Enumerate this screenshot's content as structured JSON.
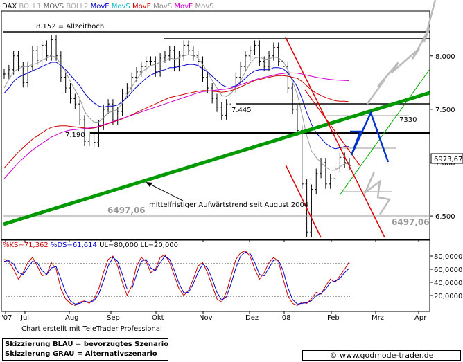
{
  "chart_data": [
    {
      "type": "line",
      "title": "",
      "indicator_legend": [
        {
          "text": "DAX",
          "color": "#000000"
        },
        {
          "text": "BOLL1",
          "color": "#aaaaaa"
        },
        {
          "text": "MOVS",
          "color": "#666666"
        },
        {
          "text": "BOLL2",
          "color": "#aaaaaa"
        },
        {
          "text": "MovE",
          "color": "#0000cc"
        },
        {
          "text": "MovS",
          "color": "#00bbcc"
        },
        {
          "text": "MovE",
          "color": "#cc0000"
        },
        {
          "text": "MovS",
          "color": "#888888"
        },
        {
          "text": "MovE",
          "color": "#cc00cc"
        },
        {
          "text": "MovS",
          "color": "#888888"
        }
      ],
      "x_tick_labels": [
        "'07",
        "Jul",
        "Aug",
        "Sep",
        "Okt",
        "Nov",
        "Dez",
        "'08",
        "Feb",
        "Mrz",
        "Apr"
      ],
      "y_tick_labels": [
        8000,
        7500,
        7000,
        6500
      ],
      "ylim": [
        6280,
        8420
      ],
      "grid": false,
      "current_value_label": "6973,67",
      "series": [
        {
          "role": "price",
          "color": "#000000",
          "values": [
            7830,
            7870,
            8000,
            7900,
            7750,
            7900,
            8050,
            7960,
            8100,
            8000,
            8152,
            8000,
            7800,
            7700,
            7600,
            7550,
            7400,
            7200,
            7250,
            7190,
            7350,
            7500,
            7550,
            7400,
            7480,
            7650,
            7700,
            7800,
            7850,
            7900,
            7950,
            7950,
            7850,
            7980,
            8000,
            8050,
            7900,
            8000,
            8100,
            8050,
            8000,
            7950,
            7800,
            7700,
            7600,
            7520,
            7445,
            7550,
            7700,
            7800,
            7900,
            8000,
            8050,
            8100,
            7950,
            7900,
            8000,
            8080,
            7950,
            7900,
            7700,
            7500,
            7300,
            6800,
            6350,
            6750,
            6900,
            7000,
            6800,
            6850,
            6950,
            7050,
            7000,
            6973.67
          ]
        },
        {
          "role": "moving-average-fast",
          "color": "#999999",
          "values": [
            7700,
            7780,
            7850,
            7880,
            7900,
            7900,
            7920,
            7930,
            7960,
            7980,
            8000,
            7990,
            7920,
            7850,
            7760,
            7680,
            7600,
            7480,
            7420,
            7380,
            7380,
            7420,
            7470,
            7480,
            7500,
            7560,
            7630,
            7710,
            7780,
            7840,
            7880,
            7910,
            7920,
            7940,
            7950,
            7980,
            7970,
            7980,
            8000,
            8010,
            8000,
            7980,
            7920,
            7850,
            7770,
            7700,
            7630,
            7620,
            7650,
            7700,
            7770,
            7850,
            7930,
            7980,
            7990,
            7970,
            7970,
            7990,
            7980,
            7950,
            7870,
            7760,
            7640,
            7450,
            7250,
            7110,
            7050,
            7000,
            6960,
            6930,
            6930,
            6960,
            6990,
            6990
          ]
        },
        {
          "role": "moving-average-mid",
          "color": "#0000cc",
          "values": [
            7650,
            7700,
            7760,
            7800,
            7820,
            7840,
            7860,
            7880,
            7900,
            7920,
            7940,
            7940,
            7910,
            7870,
            7820,
            7770,
            7720,
            7650,
            7600,
            7560,
            7530,
            7520,
            7530,
            7530,
            7540,
            7570,
            7610,
            7660,
            7710,
            7750,
            7790,
            7820,
            7840,
            7860,
            7870,
            7890,
            7890,
            7900,
            7910,
            7920,
            7920,
            7910,
            7880,
            7850,
            7810,
            7770,
            7730,
            7710,
            7710,
            7720,
            7750,
            7790,
            7830,
            7860,
            7870,
            7870,
            7870,
            7890,
            7890,
            7880,
            7840,
            7780,
            7710,
            7600,
            7470,
            7360,
            7280,
            7230,
            7180,
            7150,
            7130,
            7140,
            7150,
            7150
          ]
        },
        {
          "role": "moving-average-long",
          "color": "#cc0000",
          "values": [
            6950,
            7000,
            7050,
            7100,
            7140,
            7180,
            7220,
            7250,
            7280,
            7310,
            7330,
            7340,
            7345,
            7345,
            7340,
            7335,
            7330,
            7325,
            7320,
            7325,
            7335,
            7350,
            7365,
            7380,
            7395,
            7410,
            7430,
            7450,
            7470,
            7490,
            7510,
            7530,
            7550,
            7570,
            7590,
            7610,
            7620,
            7630,
            7640,
            7650,
            7660,
            7670,
            7675,
            7675,
            7670,
            7665,
            7660,
            7665,
            7675,
            7690,
            7710,
            7730,
            7750,
            7770,
            7780,
            7790,
            7800,
            7810,
            7815,
            7815,
            7810,
            7800,
            7790,
            7760,
            7720,
            7680,
            7650,
            7630,
            7610,
            7595,
            7580,
            7575,
            7575,
            7570
          ]
        },
        {
          "role": "moving-average-longest",
          "color": "#cc00cc",
          "values": [
            6850,
            6900,
            6950,
            7000,
            7040,
            7080,
            7120,
            7150,
            7180,
            7210,
            7240,
            7260,
            7280,
            7295,
            7305,
            7310,
            7315,
            7320,
            7325,
            7330,
            7340,
            7355,
            7370,
            7385,
            7400,
            7415,
            7430,
            7445,
            7460,
            7475,
            7490,
            7505,
            7520,
            7535,
            7550,
            7565,
            7580,
            7595,
            7610,
            7625,
            7640,
            7655,
            7665,
            7670,
            7675,
            7680,
            7685,
            7690,
            7700,
            7715,
            7730,
            7745,
            7760,
            7775,
            7790,
            7800,
            7810,
            7820,
            7830,
            7835,
            7840,
            7840,
            7838,
            7830,
            7820,
            7810,
            7800,
            7792,
            7785,
            7780,
            7775,
            7772,
            7770,
            7768
          ]
        }
      ],
      "annotations": {
        "all_time_high": {
          "label": "8.152 = Allzeithoch",
          "value": 8152
        },
        "support_1": {
          "label": "7.190",
          "value": 7190
        },
        "support_2": {
          "label": "7.445",
          "value": 7445
        },
        "level_7330": {
          "label": "7330",
          "value": 7330
        },
        "level_6497_left": {
          "label": "6497,06",
          "value": 6497.06
        },
        "level_6497_right": {
          "label": "6497,06",
          "value": 6497.06
        },
        "trendline_note": "mittelfristiger Aufwärtstrend seit August 2004"
      }
    },
    {
      "type": "line",
      "title": "",
      "legend": [
        {
          "text": "%KS=71,362",
          "color": "#cc0000"
        },
        {
          "text": "%DS=61,614",
          "color": "#0000cc"
        },
        {
          "text": "UL=80,000",
          "color": "#000000"
        },
        {
          "text": "LL=20,000",
          "color": "#000000"
        }
      ],
      "y_tick_labels": [
        "80,0000",
        "60,0000",
        "40,0000",
        "20,0000"
      ],
      "ylim": [
        0,
        100
      ],
      "upper_level": 80,
      "lower_level": 20,
      "series": [
        {
          "name": "%KS",
          "color": "#cc0000",
          "values": [
            75,
            72,
            60,
            45,
            55,
            70,
            78,
            65,
            50,
            52,
            70,
            60,
            30,
            15,
            8,
            5,
            10,
            12,
            8,
            15,
            30,
            55,
            75,
            80,
            65,
            40,
            20,
            35,
            65,
            78,
            72,
            55,
            60,
            78,
            82,
            70,
            50,
            30,
            20,
            28,
            45,
            65,
            70,
            55,
            35,
            15,
            10,
            25,
            50,
            75,
            85,
            88,
            80,
            60,
            45,
            55,
            70,
            78,
            72,
            45,
            20,
            8,
            5,
            10,
            8,
            15,
            25,
            22,
            35,
            45,
            40,
            50,
            60,
            71.362
          ]
        },
        {
          "name": "%DS",
          "color": "#0000cc",
          "values": [
            72,
            73,
            68,
            55,
            52,
            62,
            72,
            70,
            58,
            52,
            62,
            64,
            45,
            25,
            12,
            7,
            8,
            11,
            10,
            12,
            22,
            42,
            65,
            78,
            72,
            52,
            30,
            30,
            52,
            72,
            75,
            62,
            58,
            70,
            80,
            75,
            58,
            38,
            24,
            25,
            38,
            55,
            68,
            62,
            45,
            25,
            13,
            18,
            38,
            62,
            80,
            86,
            84,
            70,
            52,
            50,
            62,
            74,
            74,
            58,
            32,
            14,
            7,
            8,
            9,
            12,
            20,
            23,
            30,
            40,
            42,
            46,
            55,
            61.614
          ]
        }
      ]
    }
  ],
  "footer": {
    "chart_credit": "Chart erstellt mit TeleTrader Professional",
    "legend_blue": "Skizzierung BLAU = bevorzugtes Szenario",
    "legend_gray": "Skizzierung GRAU = Alternativszenario",
    "url": "www.godmode-trader.de",
    "copyright_symbol": "©"
  }
}
